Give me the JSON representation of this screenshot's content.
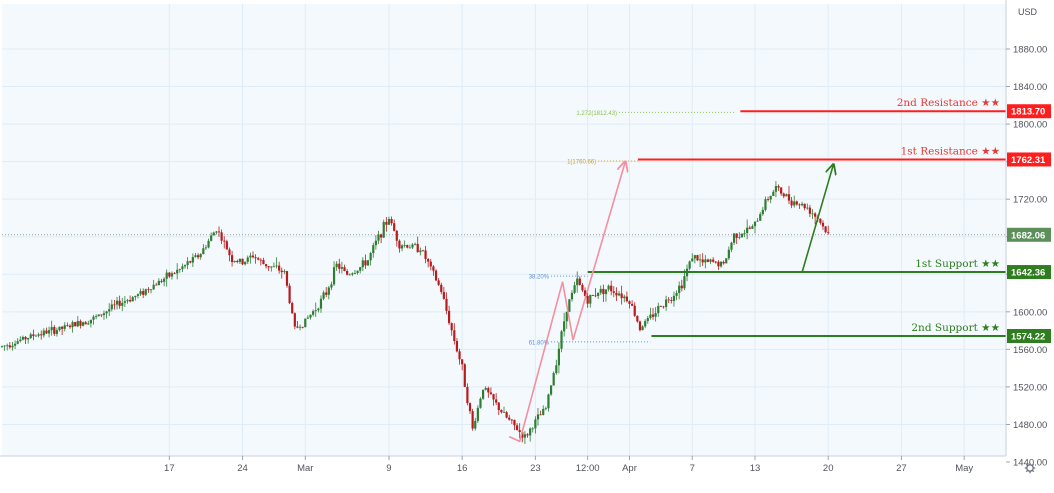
{
  "chart_data": {
    "type": "candlestick",
    "currency": "USD",
    "y_axis": {
      "ylim": [
        1420,
        1920
      ],
      "ticks": [
        1440,
        1480,
        1520,
        1560,
        1600,
        1640,
        1680,
        1720,
        1760,
        1800,
        1840,
        1880
      ],
      "tick_labels": [
        "1440.00",
        "1480.00",
        "1520.00",
        "1560.00",
        "1600.00",
        "1640.00",
        "1680.00",
        "1720.00",
        "1760.00",
        "1800.00",
        "1840.00",
        "1880.00"
      ]
    },
    "x_axis": {
      "ticks": [
        {
          "label": "17",
          "t": 16
        },
        {
          "label": "24",
          "t": 23
        },
        {
          "label": "Mar",
          "t": 29
        },
        {
          "label": "9",
          "t": 37
        },
        {
          "label": "16",
          "t": 44
        },
        {
          "label": "23",
          "t": 51
        },
        {
          "label": "12:00",
          "t": 56
        },
        {
          "label": "Apr",
          "t": 60
        },
        {
          "label": "7",
          "t": 66
        },
        {
          "label": "13",
          "t": 72
        },
        {
          "label": "20",
          "t": 79
        },
        {
          "label": "27",
          "t": 86
        },
        {
          "label": "May",
          "t": 92
        }
      ],
      "xlim": [
        0,
        96
      ]
    },
    "price_path": [
      [
        0,
        1563
      ],
      [
        3,
        1575
      ],
      [
        6,
        1583
      ],
      [
        9,
        1594
      ],
      [
        11,
        1608
      ],
      [
        13,
        1618
      ],
      [
        15,
        1632
      ],
      [
        17,
        1645
      ],
      [
        19,
        1662
      ],
      [
        20.5,
        1689
      ],
      [
        22,
        1656
      ],
      [
        23,
        1652
      ],
      [
        24,
        1660
      ],
      [
        25,
        1651
      ],
      [
        26,
        1647
      ],
      [
        27,
        1642
      ],
      [
        28,
        1582
      ],
      [
        29,
        1590
      ],
      [
        30,
        1604
      ],
      [
        31,
        1620
      ],
      [
        32,
        1650
      ],
      [
        33,
        1640
      ],
      [
        34,
        1645
      ],
      [
        35,
        1655
      ],
      [
        36,
        1680
      ],
      [
        37,
        1700
      ],
      [
        38,
        1672
      ],
      [
        39,
        1670
      ],
      [
        40,
        1668
      ],
      [
        41,
        1646
      ],
      [
        42,
        1622
      ],
      [
        43,
        1580
      ],
      [
        44,
        1540
      ],
      [
        45,
        1475
      ],
      [
        46,
        1520
      ],
      [
        47,
        1505
      ],
      [
        48,
        1490
      ],
      [
        49,
        1478
      ],
      [
        50,
        1466
      ],
      [
        51,
        1483
      ],
      [
        52,
        1497
      ],
      [
        53,
        1548
      ],
      [
        54,
        1605
      ],
      [
        55,
        1633
      ],
      [
        56,
        1612
      ],
      [
        57,
        1622
      ],
      [
        58,
        1625
      ],
      [
        59,
        1620
      ],
      [
        60,
        1612
      ],
      [
        61,
        1583
      ],
      [
        62,
        1594
      ],
      [
        63,
        1607
      ],
      [
        64,
        1616
      ],
      [
        65,
        1630
      ],
      [
        66,
        1660
      ],
      [
        67,
        1652
      ],
      [
        68,
        1653
      ],
      [
        69,
        1650
      ],
      [
        70,
        1682
      ],
      [
        71,
        1685
      ],
      [
        72,
        1692
      ],
      [
        73,
        1718
      ],
      [
        74,
        1732
      ],
      [
        75,
        1722
      ],
      [
        76,
        1716
      ],
      [
        77,
        1711
      ],
      [
        78,
        1700
      ],
      [
        79.2,
        1678
      ]
    ],
    "levels": [
      {
        "label": "2nd Resistance ★★",
        "value": 1813.7,
        "price_label": "1813.70",
        "color": "#ff1e1e",
        "text_color": "#e53935"
      },
      {
        "label": "1st Resistance ★★",
        "value": 1762.31,
        "price_label": "1762.31",
        "color": "#ff1e1e",
        "text_color": "#e53935"
      },
      {
        "label": "1st Support ★★",
        "value": 1642.36,
        "price_label": "1642.36",
        "color": "#2e7d1e",
        "text_color": "#2e7d1e"
      },
      {
        "label": "2nd Support ★★",
        "value": 1574.22,
        "price_label": "1574.22",
        "color": "#2e7d1e",
        "text_color": "#2e7d1e"
      }
    ],
    "current_price": {
      "value": 1682.06,
      "price_label": "1682.06"
    },
    "fib_levels": [
      {
        "label": "1.272(1812.43)",
        "value": 1812.43,
        "color": "#8bc34a"
      },
      {
        "label": "1(1760.66)",
        "value": 1760.66,
        "color": "#c9a227"
      },
      {
        "label": "38.20%",
        "value": 1638,
        "color": "#5b8fd6"
      },
      {
        "label": "61.80%",
        "value": 1568,
        "color": "#5b8fd6"
      }
    ],
    "arrows": [
      {
        "kind": "fib-swing",
        "color": "#f48fa0",
        "points": [
          [
            48.5,
            1467
          ],
          [
            49.5,
            1462
          ],
          [
            53.6,
            1632
          ],
          [
            54.6,
            1570
          ],
          [
            59.6,
            1760
          ]
        ]
      },
      {
        "kind": "forecast",
        "color": "#2e7d1e",
        "points": [
          [
            76.5,
            1642
          ],
          [
            79.5,
            1757
          ]
        ]
      }
    ],
    "colors": {
      "up": "#2e7d32",
      "down": "#b71c1c",
      "grid": "#e0ecf5",
      "axis_bg": "#ffffff",
      "plot_bg": "#f4f9fe"
    }
  }
}
